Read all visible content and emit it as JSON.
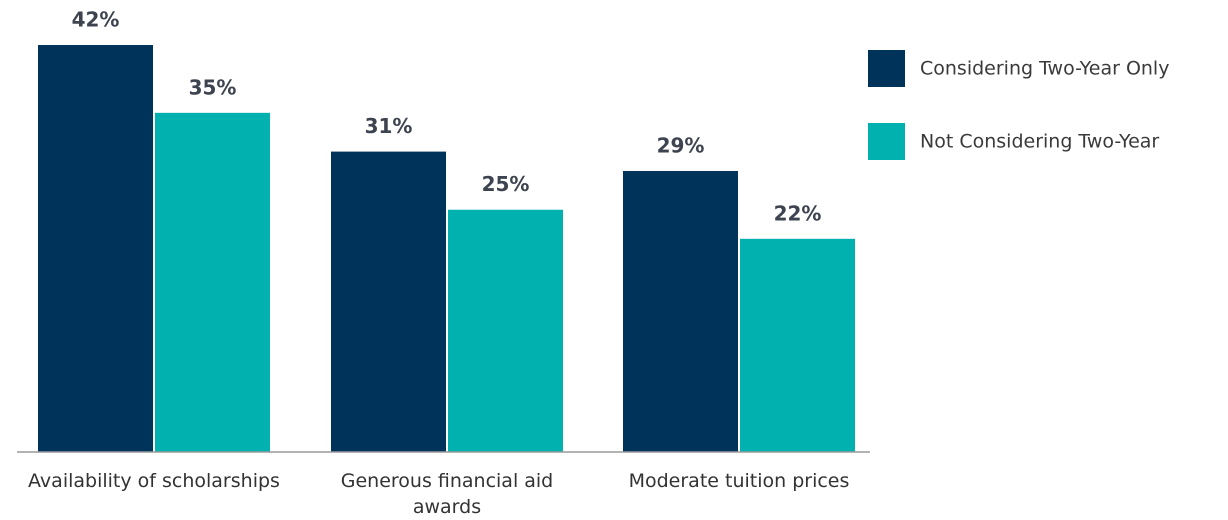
{
  "chart_data": {
    "type": "bar",
    "categories": [
      "Availability of scholarships",
      "Generous financial aid awards",
      "Moderate tuition prices"
    ],
    "series": [
      {
        "name": "Considering Two-Year Only",
        "color": "#00335a",
        "values": [
          42,
          31,
          29
        ],
        "value_labels": [
          "42%",
          "31%",
          "29%"
        ]
      },
      {
        "name": "Not Considering Two-Year",
        "color": "#00b1b0",
        "values": [
          35,
          25,
          22
        ],
        "value_labels": [
          "35%",
          "25%",
          "22%"
        ]
      }
    ],
    "legend": "right"
  }
}
